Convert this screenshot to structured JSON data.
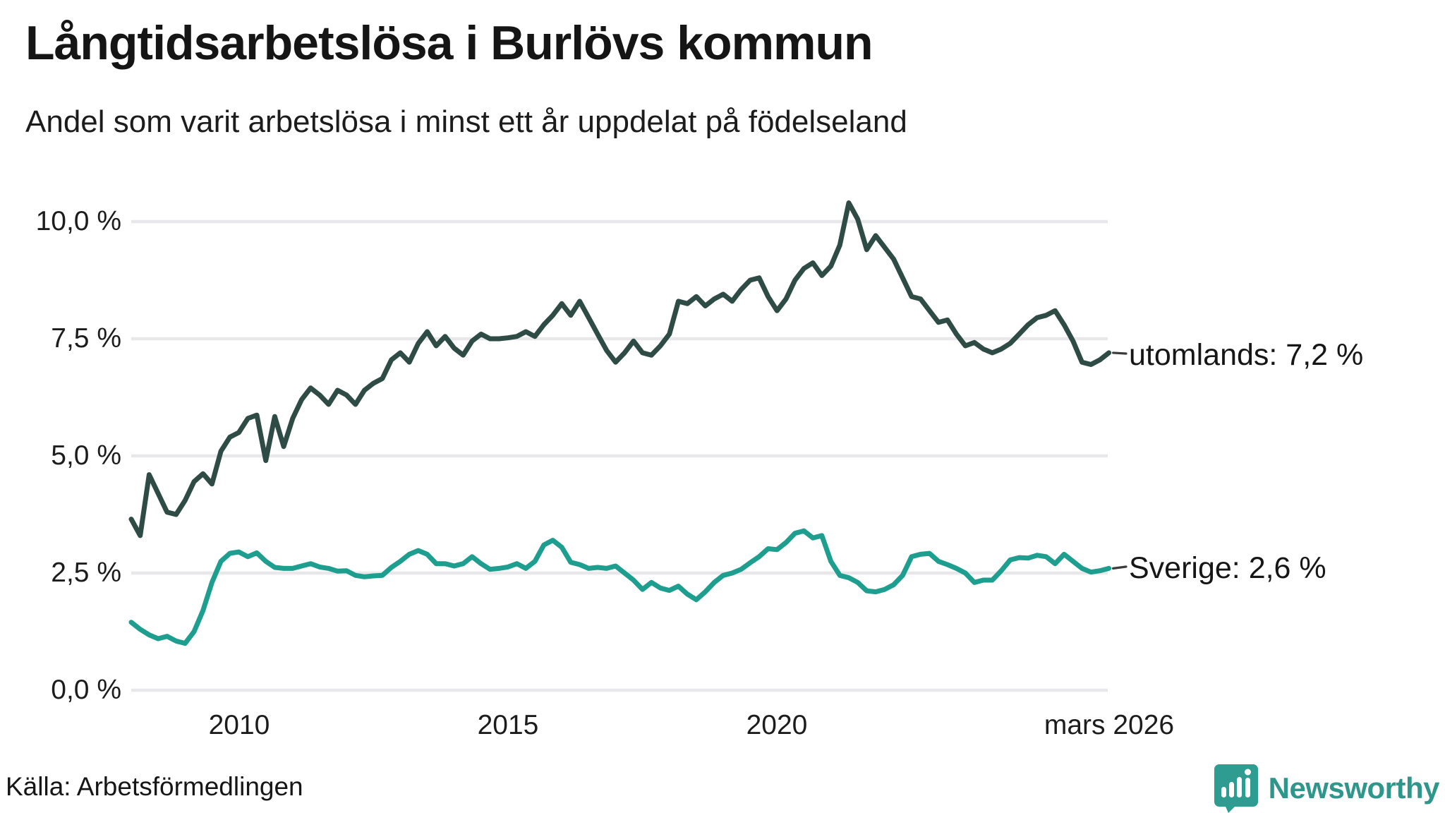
{
  "header": {
    "title": "Långtidsarbetslösa i Burlövs kommun",
    "subtitle": "Andel som varit arbetslösa i minst ett år uppdelat på födelseland"
  },
  "footer": {
    "source": "Källa: Arbetsförmedlingen",
    "brand_name": "Newsworthy"
  },
  "colors": {
    "background": "#ffffff",
    "grid": "#e8e8ea",
    "text": "#1c1c1c",
    "connector": "#3b3b3b",
    "utomlands_line": "#2e4c45",
    "sverige_line": "#1e9e8f",
    "brand_teal": "#2f968c"
  },
  "chart_data": {
    "type": "line",
    "title": "Långtidsarbetslösa i Burlövs kommun",
    "subtitle": "Andel som varit arbetslösa i minst ett år uppdelat på födelseland",
    "unit": "%",
    "grid": "horizontal",
    "legend_position": "right-end-labels",
    "x_start_year": 2008.0,
    "x_step_years": 0.1666667,
    "xlim": [
      2008.0,
      2026.25
    ],
    "ylim": [
      0,
      10.45
    ],
    "x_axis_ticks": [
      {
        "value": 2010.0,
        "label": "2010"
      },
      {
        "value": 2015.0,
        "label": "2015"
      },
      {
        "value": 2020.0,
        "label": "2020"
      },
      {
        "value": 2026.17,
        "label": "mars 2026"
      }
    ],
    "y_axis_ticks": [
      {
        "value": 0.0,
        "label": "0,0 %"
      },
      {
        "value": 2.5,
        "label": "2,5 %"
      },
      {
        "value": 5.0,
        "label": "5,0 %"
      },
      {
        "value": 7.5,
        "label": "7,5 %"
      },
      {
        "value": 10.0,
        "label": "10,0 %"
      }
    ],
    "series": [
      {
        "name": "utomlands",
        "end_label": "utomlands: 7,2 %",
        "last_value": 7.2,
        "color": "#2e4c45",
        "values": [
          3.65,
          3.3,
          4.6,
          4.2,
          3.8,
          3.75,
          4.05,
          4.45,
          4.62,
          4.4,
          5.1,
          5.4,
          5.5,
          5.8,
          5.87,
          4.9,
          5.84,
          5.2,
          5.8,
          6.2,
          6.45,
          6.3,
          6.1,
          6.4,
          6.3,
          6.1,
          6.4,
          6.55,
          6.65,
          7.05,
          7.2,
          7.0,
          7.4,
          7.65,
          7.35,
          7.55,
          7.3,
          7.15,
          7.45,
          7.6,
          7.5,
          7.5,
          7.52,
          7.55,
          7.65,
          7.55,
          7.8,
          8.0,
          8.25,
          8.0,
          8.3,
          7.95,
          7.6,
          7.25,
          7.0,
          7.2,
          7.45,
          7.2,
          7.15,
          7.35,
          7.6,
          8.3,
          8.25,
          8.4,
          8.2,
          8.35,
          8.45,
          8.3,
          8.55,
          8.75,
          8.8,
          8.4,
          8.1,
          8.35,
          8.75,
          9.0,
          9.12,
          8.85,
          9.05,
          9.5,
          10.4,
          10.05,
          9.4,
          9.7,
          9.45,
          9.2,
          8.8,
          8.4,
          8.35,
          8.1,
          7.85,
          7.9,
          7.6,
          7.35,
          7.42,
          7.28,
          7.2,
          7.28,
          7.4,
          7.6,
          7.8,
          7.95,
          8.0,
          8.1,
          7.8,
          7.45,
          7.0,
          6.95,
          7.05,
          7.2
        ]
      },
      {
        "name": "Sverige",
        "end_label": "Sverige: 2,6 %",
        "last_value": 2.6,
        "color": "#1e9e8f",
        "values": [
          1.45,
          1.3,
          1.18,
          1.1,
          1.15,
          1.05,
          1.0,
          1.25,
          1.7,
          2.3,
          2.75,
          2.92,
          2.95,
          2.85,
          2.93,
          2.75,
          2.62,
          2.6,
          2.6,
          2.65,
          2.7,
          2.63,
          2.6,
          2.54,
          2.55,
          2.45,
          2.42,
          2.44,
          2.45,
          2.62,
          2.75,
          2.9,
          2.98,
          2.9,
          2.7,
          2.7,
          2.65,
          2.7,
          2.85,
          2.7,
          2.58,
          2.6,
          2.63,
          2.7,
          2.6,
          2.75,
          3.1,
          3.2,
          3.05,
          2.73,
          2.68,
          2.6,
          2.62,
          2.6,
          2.65,
          2.5,
          2.35,
          2.15,
          2.3,
          2.18,
          2.13,
          2.22,
          2.05,
          1.93,
          2.1,
          2.3,
          2.45,
          2.5,
          2.58,
          2.72,
          2.85,
          3.02,
          3.0,
          3.15,
          3.35,
          3.4,
          3.25,
          3.3,
          2.75,
          2.45,
          2.4,
          2.3,
          2.12,
          2.1,
          2.15,
          2.25,
          2.45,
          2.85,
          2.9,
          2.92,
          2.75,
          2.68,
          2.6,
          2.5,
          2.3,
          2.35,
          2.35,
          2.55,
          2.78,
          2.83,
          2.82,
          2.88,
          2.85,
          2.7,
          2.9,
          2.75,
          2.6,
          2.52,
          2.55,
          2.6
        ]
      }
    ]
  }
}
